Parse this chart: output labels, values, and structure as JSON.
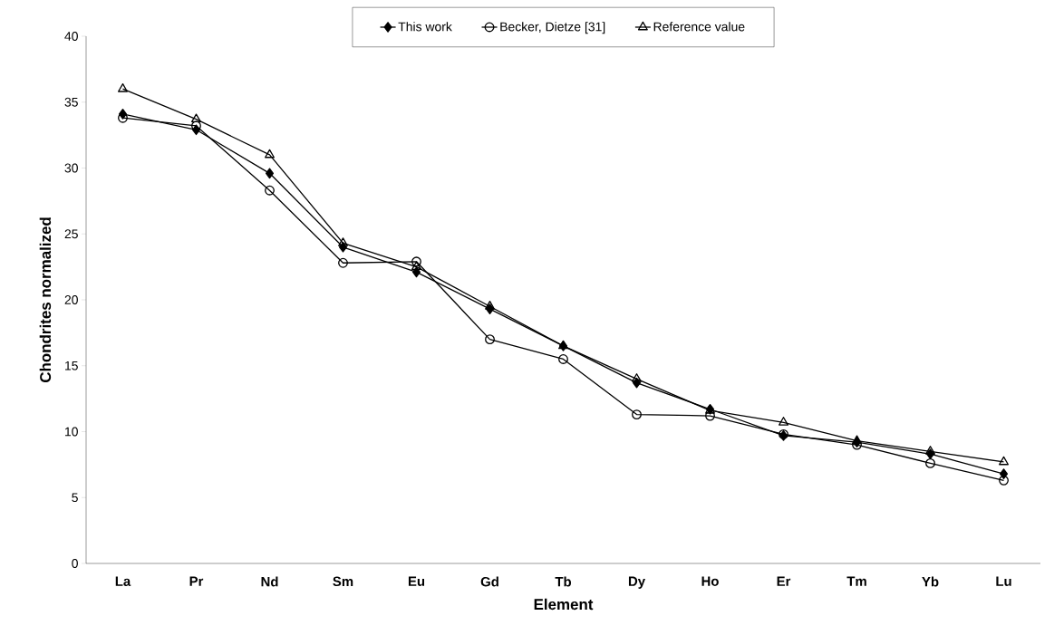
{
  "chart_data": {
    "type": "line",
    "xlabel": "Element",
    "ylabel": "Chondrites normalized",
    "categories": [
      "La",
      "Pr",
      "Nd",
      "Sm",
      "Eu",
      "Gd",
      "Tb",
      "Dy",
      "Ho",
      "Er",
      "Tm",
      "Yb",
      "Lu"
    ],
    "series": [
      {
        "name": "This work",
        "color": "#000000",
        "marker": "diamond",
        "values": [
          34.1,
          32.9,
          29.6,
          24.0,
          22.1,
          19.3,
          16.5,
          13.7,
          11.7,
          9.7,
          9.2,
          8.3,
          6.8
        ]
      },
      {
        "name": "Becker, Dietze [31]",
        "color": "#000000",
        "marker": "circle",
        "values": [
          33.8,
          33.2,
          28.3,
          22.8,
          22.9,
          17.0,
          15.5,
          11.3,
          11.2,
          9.8,
          9.0,
          7.6,
          6.3
        ]
      },
      {
        "name": "Reference value",
        "color": "#000000",
        "marker": "triangle",
        "values": [
          36.0,
          33.7,
          31.0,
          24.3,
          22.5,
          19.5,
          16.5,
          14.0,
          11.6,
          10.7,
          9.3,
          8.5,
          7.7
        ]
      }
    ],
    "ylim": [
      0,
      40
    ],
    "yticks": [
      0,
      5,
      10,
      15,
      20,
      25,
      30,
      35,
      40
    ],
    "legend": "top",
    "line_style": "solid",
    "grid": false
  }
}
